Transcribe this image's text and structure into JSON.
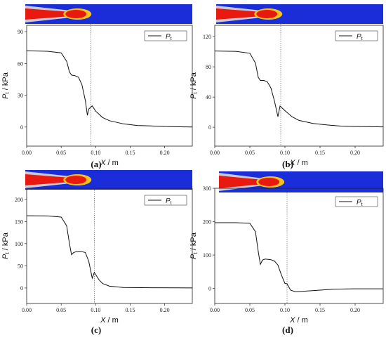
{
  "colors": {
    "curve": "#111111",
    "field_bg": "#1a2dd8",
    "nozzle_red": "#e81a10",
    "nozzle_gray": "#c9c9d6",
    "ref_line": "#555555"
  },
  "chart_data": [
    {
      "type": "line",
      "panel": "(a)",
      "xlabel_var": "X",
      "xlabel_unit": " / m",
      "ylabel_var": "P",
      "ylabel_sub": "t",
      "ylabel_unit": " / kPa",
      "legend_var": "P",
      "legend_sub": "t",
      "legend_position": "top-right",
      "xlim": [
        0,
        0.24
      ],
      "xticks": [
        "0.00",
        "0.05",
        "0.10",
        "0.15",
        "0.20"
      ],
      "ylim": [
        -18,
        96
      ],
      "yticks": [
        "0",
        "30",
        "60",
        "90"
      ],
      "dashed_x": 0.093,
      "series": [
        {
          "x": [
            0,
            0.03,
            0.05,
            0.058,
            0.062,
            0.065,
            0.07,
            0.075,
            0.08,
            0.085,
            0.088,
            0.09,
            0.095,
            0.1,
            0.11,
            0.12,
            0.14,
            0.16,
            0.18,
            0.2,
            0.24
          ],
          "y": [
            72,
            71.5,
            70,
            62,
            52,
            49,
            48.5,
            47,
            40,
            25,
            11,
            17,
            20,
            15,
            9,
            6,
            3,
            1.5,
            1,
            0.5,
            0
          ]
        }
      ]
    },
    {
      "type": "line",
      "panel": "(b)",
      "xlabel_var": "X",
      "xlabel_unit": " / m",
      "ylabel_var": "P",
      "ylabel_sub": "t",
      "ylabel_unit": " / kPa",
      "legend_var": "P",
      "legend_sub": "t",
      "legend_position": "top-right",
      "xlim": [
        0,
        0.24
      ],
      "xticks": [
        "0.00",
        "0.05",
        "0.10",
        "0.15",
        "0.20"
      ],
      "ylim": [
        -25,
        135
      ],
      "yticks": [
        "0",
        "40",
        "80",
        "120"
      ],
      "dashed_x": 0.094,
      "series": [
        {
          "x": [
            0,
            0.03,
            0.05,
            0.058,
            0.062,
            0.065,
            0.07,
            0.075,
            0.08,
            0.085,
            0.09,
            0.093,
            0.1,
            0.11,
            0.12,
            0.14,
            0.16,
            0.18,
            0.2,
            0.24
          ],
          "y": [
            101,
            100.5,
            98,
            85,
            66,
            62,
            62,
            60,
            52,
            35,
            14,
            28,
            22,
            14,
            9,
            5,
            3,
            1.5,
            1,
            0.5
          ]
        }
      ]
    },
    {
      "type": "line",
      "panel": "(c)",
      "xlabel_var": "X",
      "xlabel_unit": " / m",
      "ylabel_var": "P",
      "ylabel_sub": "t",
      "ylabel_unit": " / kPa",
      "legend_var": "P",
      "legend_sub": "t",
      "legend_position": "top-right",
      "xlim": [
        0,
        0.24
      ],
      "xticks": [
        "0.00",
        "0.05",
        "0.10",
        "0.15",
        "0.20"
      ],
      "ylim": [
        -35,
        225
      ],
      "yticks": [
        "0",
        "50",
        "100",
        "150",
        "200"
      ],
      "dashed_x": 0.098,
      "series": [
        {
          "x": [
            0,
            0.03,
            0.05,
            0.058,
            0.062,
            0.065,
            0.068,
            0.072,
            0.08,
            0.085,
            0.09,
            0.095,
            0.098,
            0.1,
            0.105,
            0.11,
            0.12,
            0.14,
            0.18,
            0.24
          ],
          "y": [
            163,
            162.5,
            160,
            140,
            100,
            75,
            80,
            82,
            82,
            80,
            60,
            22,
            35,
            30,
            18,
            10,
            4,
            1,
            0.5,
            0
          ]
        }
      ]
    },
    {
      "type": "line",
      "panel": "(d)",
      "xlabel_var": "X",
      "xlabel_unit": " / m",
      "ylabel_var": "P",
      "ylabel_sub": "t",
      "ylabel_unit": " / kPa",
      "legend_var": "P",
      "legend_sub": "t",
      "legend_position": "top-right",
      "xlim": [
        0,
        0.24
      ],
      "xticks": [
        "0.00",
        "0.05",
        "0.10",
        "0.15",
        "0.20"
      ],
      "ylim": [
        -45,
        300
      ],
      "yticks": [
        "0",
        "100",
        "200",
        "300"
      ],
      "dashed_x": 0.103,
      "series": [
        {
          "x": [
            0,
            0.03,
            0.05,
            0.058,
            0.062,
            0.065,
            0.068,
            0.072,
            0.08,
            0.085,
            0.09,
            0.095,
            0.1,
            0.103,
            0.108,
            0.115,
            0.13,
            0.15,
            0.17,
            0.2,
            0.24
          ],
          "y": [
            197,
            197,
            195,
            170,
            110,
            72,
            85,
            88,
            86,
            82,
            70,
            40,
            15,
            14,
            -5,
            -10,
            -8,
            -5,
            -2,
            -1,
            -1
          ]
        }
      ]
    }
  ]
}
